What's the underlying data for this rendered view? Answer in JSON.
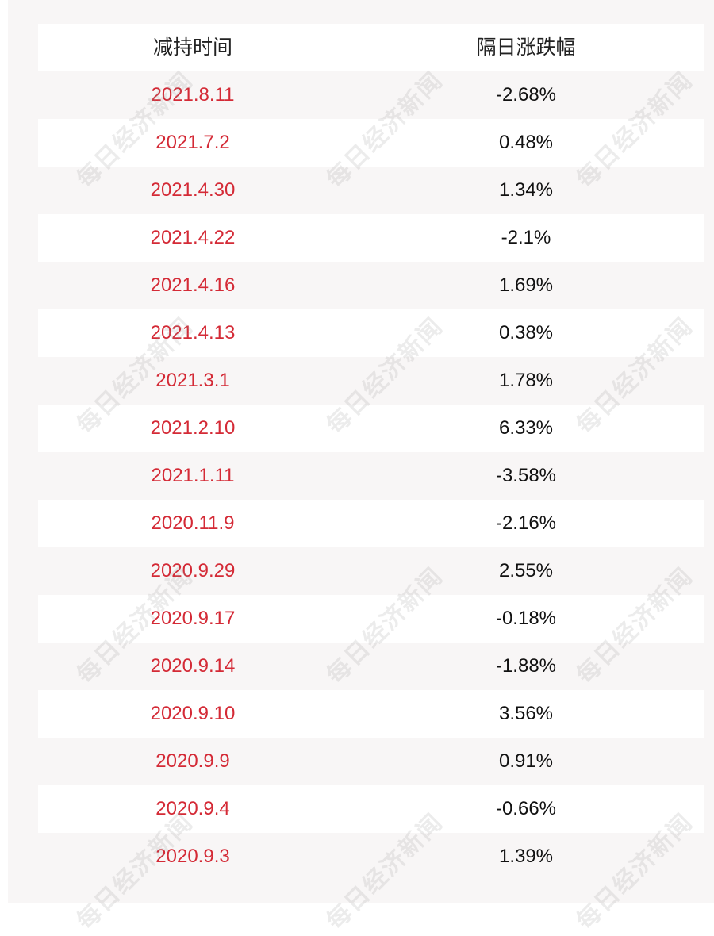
{
  "table": {
    "headers": [
      "减持时间",
      "隔日涨跌幅"
    ],
    "rows": [
      {
        "date": "2021.8.11",
        "change": "-2.68%"
      },
      {
        "date": "2021.7.2",
        "change": "0.48%"
      },
      {
        "date": "2021.4.30",
        "change": "1.34%"
      },
      {
        "date": "2021.4.22",
        "change": "-2.1%"
      },
      {
        "date": "2021.4.16",
        "change": "1.69%"
      },
      {
        "date": "2021.4.13",
        "change": "0.38%"
      },
      {
        "date": "2021.3.1",
        "change": "1.78%"
      },
      {
        "date": "2021.2.10",
        "change": "6.33%"
      },
      {
        "date": "2021.1.11",
        "change": "-3.58%"
      },
      {
        "date": "2020.11.9",
        "change": "-2.16%"
      },
      {
        "date": "2020.9.29",
        "change": "2.55%"
      },
      {
        "date": "2020.9.17",
        "change": "-0.18%"
      },
      {
        "date": "2020.9.14",
        "change": "-1.88%"
      },
      {
        "date": "2020.9.10",
        "change": "3.56%"
      },
      {
        "date": "2020.9.9",
        "change": "0.91%"
      },
      {
        "date": "2020.9.4",
        "change": "-0.66%"
      },
      {
        "date": "2020.9.3",
        "change": "1.39%"
      }
    ]
  },
  "watermark": "每日经济新闻",
  "colors": {
    "date_text": "#d42a36",
    "value_text": "#111111",
    "header_text": "#222222",
    "shaded_row": "#f8f6f6",
    "white_row": "#ffffff"
  }
}
